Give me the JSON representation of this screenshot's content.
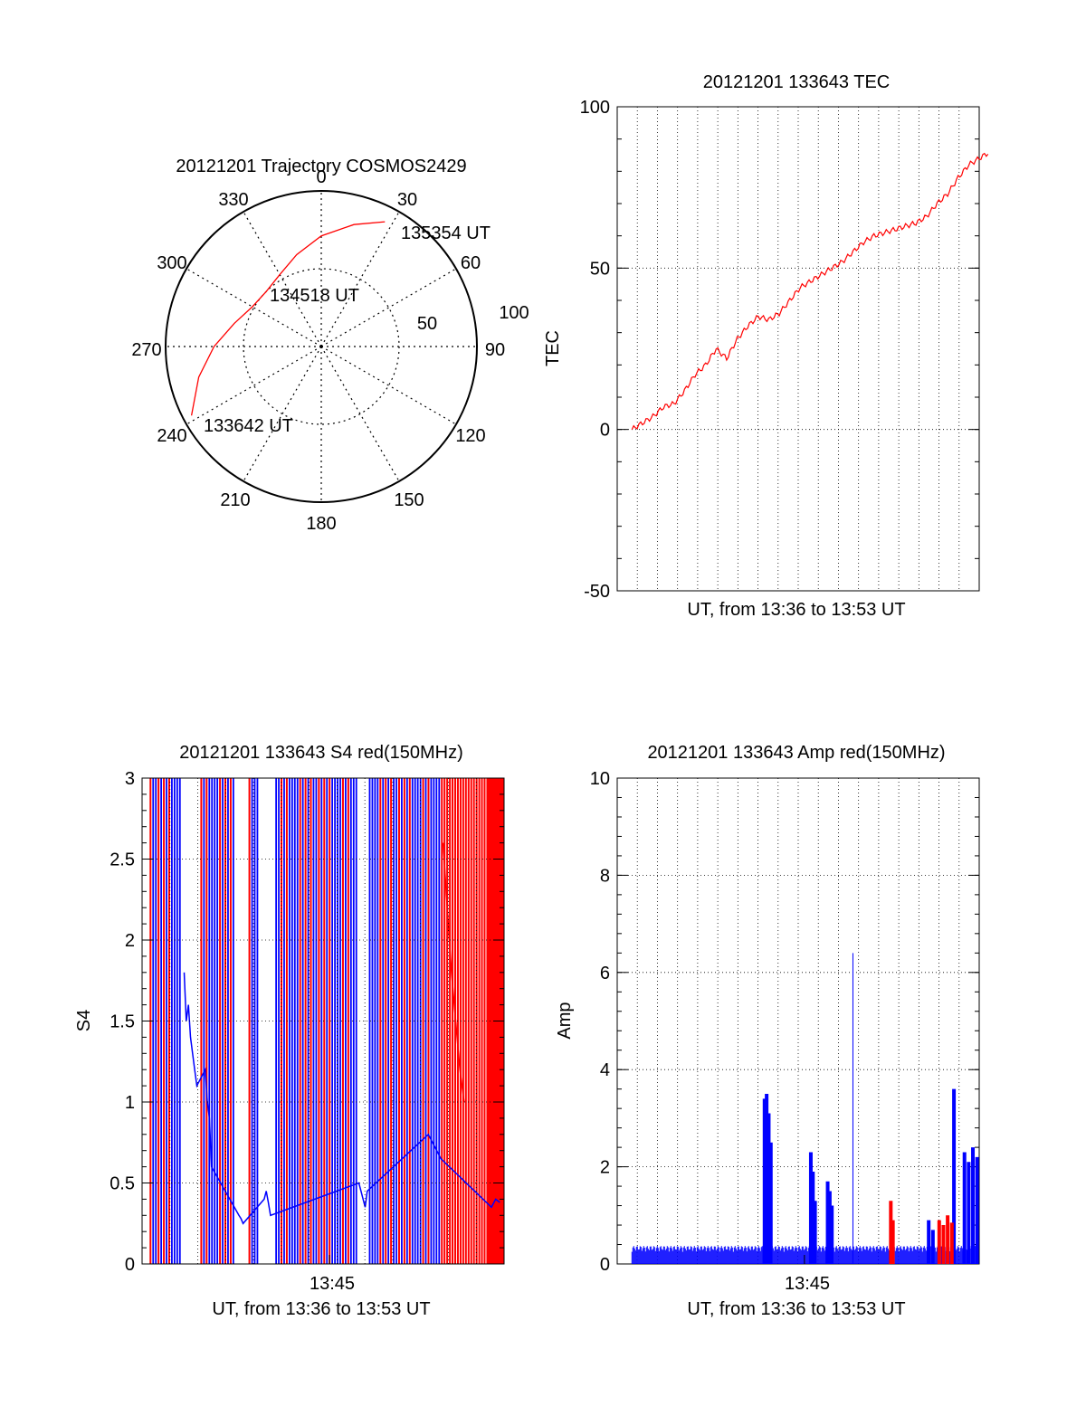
{
  "colors": {
    "red": "#ff0000",
    "blue": "#0000ff",
    "grid": "#000000"
  },
  "chart_data": [
    {
      "type": "polar",
      "title": "20121201 Trajectory COSMOS2429",
      "angle_labels": [
        "0",
        "30",
        "60",
        "90",
        "120",
        "150",
        "180",
        "210",
        "240",
        "270",
        "300",
        "330"
      ],
      "radial_labels": [
        "50",
        "100"
      ],
      "trajectory": {
        "points": [
          {
            "az": 242,
            "el": 5
          },
          {
            "az": 256,
            "el": 17
          },
          {
            "az": 270,
            "el": 28
          },
          {
            "az": 285,
            "el": 38
          },
          {
            "az": 300,
            "el": 44
          },
          {
            "az": 315,
            "el": 45
          },
          {
            "az": 330,
            "el": 42
          },
          {
            "az": 345,
            "el": 35
          },
          {
            "az": 360,
            "el": 26
          },
          {
            "az": 15,
            "el": 17
          },
          {
            "az": 27,
            "el": 9
          }
        ],
        "labels": [
          "133642 UT",
          "134518 UT",
          "135354 UT"
        ]
      }
    },
    {
      "type": "line",
      "title": "20121201 133643 TEC",
      "xlabel": "UT, from 13:36 to 13:53 UT",
      "ylabel": "TEC",
      "ylim": [
        -50,
        100
      ],
      "yticks": [
        "-50",
        "0",
        "50",
        "100"
      ],
      "xlim_min": [
        0,
        17.2
      ],
      "series": [
        {
          "color": "red",
          "x": [
            0,
            0.5,
            1,
            1.5,
            2,
            2.5,
            3,
            3.5,
            4,
            4.5,
            5,
            5.5,
            6,
            6.5,
            7,
            7.5,
            8,
            8.5,
            9,
            9.5,
            10,
            10.5,
            11,
            11.5,
            12,
            12.5,
            13,
            13.5,
            14,
            14.5,
            15,
            15.5,
            16,
            16.5,
            17
          ],
          "y": [
            0,
            2,
            4,
            7,
            8,
            12,
            17,
            20,
            25,
            22,
            28,
            32,
            35,
            34,
            36,
            40,
            44,
            46,
            48,
            50,
            52,
            55,
            58,
            60,
            61,
            62,
            63,
            64,
            66,
            70,
            73,
            78,
            82,
            84,
            86
          ]
        }
      ]
    },
    {
      "type": "line",
      "title": "20121201 133643 S4 red(150MHz)",
      "xlabel": "UT, from 13:36 to 13:53 UT",
      "ylabel": "S4",
      "ylim": [
        0,
        3
      ],
      "yticks": [
        "0",
        "0.5",
        "1",
        "1.5",
        "2",
        "2.5",
        "3"
      ],
      "xtick": "13:45",
      "xlim_min": [
        0,
        17.2
      ],
      "series": [
        {
          "color": "blue",
          "x": [
            2.0,
            2.1,
            2.2,
            2.3,
            2.4,
            2.5,
            2.6,
            3.0,
            3.1,
            3.2,
            3.3,
            4.6,
            4.7,
            4.8,
            5.8,
            5.9,
            6.0,
            6.1,
            10.3,
            10.4,
            10.5,
            10.6,
            10.7,
            13.6,
            13.8,
            14.0,
            14.2,
            16.6,
            16.8,
            17.0
          ],
          "y": [
            1.8,
            1.5,
            1.6,
            1.4,
            1.3,
            1.2,
            1.1,
            1.2,
            1.0,
            0.9,
            0.6,
            0.3,
            0.28,
            0.25,
            0.4,
            0.45,
            0.38,
            0.3,
            0.5,
            0.45,
            0.4,
            0.35,
            0.45,
            0.8,
            0.75,
            0.7,
            0.65,
            0.35,
            0.4,
            0.38
          ]
        },
        {
          "color": "red",
          "x": [
            14.3,
            14.5,
            14.7,
            14.9,
            15.1,
            15.3
          ],
          "y": [
            2.6,
            2.2,
            1.8,
            1.5,
            1.2,
            1.0
          ]
        }
      ]
    },
    {
      "type": "line",
      "title": "20121201 133643 Amp red(150MHz)",
      "xlabel": "UT, from 13:36 to 13:53 UT",
      "ylabel": "Amp",
      "ylim": [
        0,
        10
      ],
      "yticks": [
        "0",
        "2",
        "4",
        "6",
        "8",
        "10"
      ],
      "xtick": "13:45",
      "xlim_min": [
        0,
        17.2
      ],
      "series": [
        {
          "color": "blue",
          "spikes": [
            {
              "x": 7.0,
              "y": 3.4
            },
            {
              "x": 7.1,
              "y": 3.5
            },
            {
              "x": 7.2,
              "y": 3.1
            },
            {
              "x": 7.3,
              "y": 2.5
            },
            {
              "x": 9.2,
              "y": 2.3
            },
            {
              "x": 9.3,
              "y": 1.9
            },
            {
              "x": 9.4,
              "y": 1.3
            },
            {
              "x": 10.0,
              "y": 1.7
            },
            {
              "x": 10.1,
              "y": 1.5
            },
            {
              "x": 10.2,
              "y": 1.2
            },
            {
              "x": 11.2,
              "y": 6.4
            },
            {
              "x": 14.8,
              "y": 0.9
            },
            {
              "x": 15.0,
              "y": 0.7
            },
            {
              "x": 16.0,
              "y": 3.6
            },
            {
              "x": 16.5,
              "y": 2.3
            },
            {
              "x": 16.7,
              "y": 2.1
            },
            {
              "x": 16.9,
              "y": 2.4
            },
            {
              "x": 17.1,
              "y": 2.2
            }
          ],
          "baseline": 0.25
        },
        {
          "color": "red",
          "spikes": [
            {
              "x": 13.0,
              "y": 1.3
            },
            {
              "x": 13.1,
              "y": 0.9
            },
            {
              "x": 15.3,
              "y": 0.9
            },
            {
              "x": 15.5,
              "y": 0.8
            },
            {
              "x": 15.7,
              "y": 1.0
            },
            {
              "x": 15.9,
              "y": 0.85
            }
          ]
        }
      ]
    }
  ]
}
